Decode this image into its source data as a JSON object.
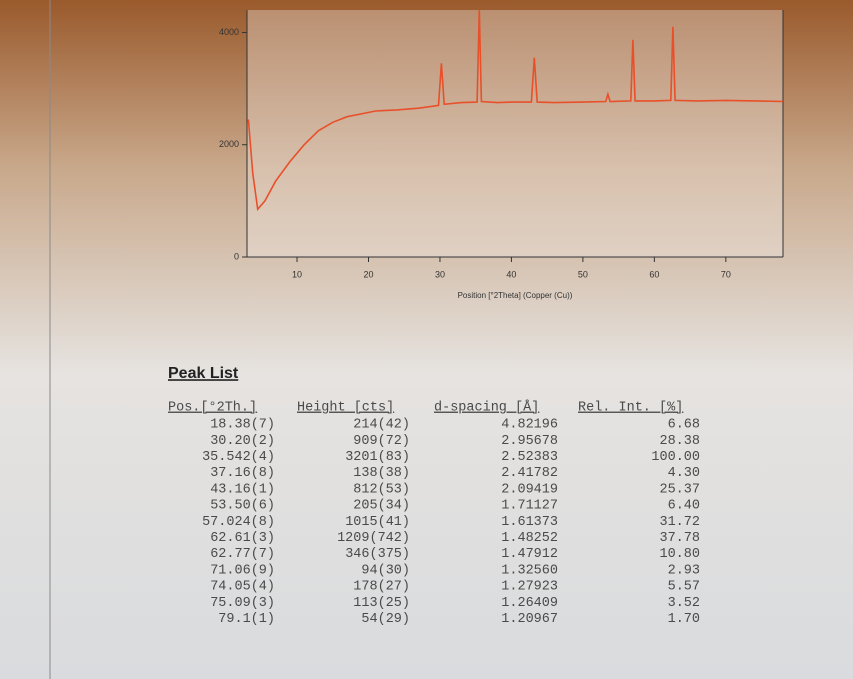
{
  "chart_data": {
    "type": "line",
    "xlabel": "Position [°2Theta] (Copper (Cu))",
    "x": [
      3.2,
      3.8,
      4.5,
      5.5,
      7,
      9,
      11,
      13,
      15,
      17,
      19,
      21,
      24,
      27,
      29.8,
      30.2,
      30.6,
      33,
      35.2,
      35.5,
      35.8,
      38,
      40,
      42.8,
      43.2,
      43.6,
      46,
      50,
      53.2,
      53.5,
      53.8,
      56.7,
      57.0,
      57.3,
      60,
      62.3,
      62.6,
      62.9,
      66,
      70,
      74,
      78
    ],
    "y": [
      2450,
      1500,
      850,
      1000,
      1350,
      1700,
      2000,
      2250,
      2400,
      2500,
      2550,
      2600,
      2620,
      2650,
      2700,
      3450,
      2720,
      2750,
      2760,
      4400,
      2770,
      2750,
      2760,
      2760,
      3550,
      2760,
      2750,
      2760,
      2770,
      2900,
      2770,
      2780,
      3870,
      2780,
      2780,
      2790,
      4100,
      2790,
      2780,
      2790,
      2780,
      2770
    ],
    "color": "#e8502a",
    "xlim": [
      3,
      78
    ],
    "ylim": [
      0,
      4400
    ],
    "xticks": [
      10,
      20,
      30,
      40,
      50,
      60,
      70
    ],
    "yticks": [
      0,
      2000,
      4000
    ]
  },
  "peak_list": {
    "title": "Peak List",
    "columns": [
      "Pos.[°2Th.]",
      "Height [cts]",
      "d-spacing [Å]",
      "Rel. Int. [%]"
    ],
    "rows": [
      [
        "18.38(7)",
        "214(42)",
        "4.82196",
        "6.68"
      ],
      [
        "30.20(2)",
        "909(72)",
        "2.95678",
        "28.38"
      ],
      [
        "35.542(4)",
        "3201(83)",
        "2.52383",
        "100.00"
      ],
      [
        "37.16(8)",
        "138(38)",
        "2.41782",
        "4.30"
      ],
      [
        "43.16(1)",
        "812(53)",
        "2.09419",
        "25.37"
      ],
      [
        "53.50(6)",
        "205(34)",
        "1.71127",
        "6.40"
      ],
      [
        "57.024(8)",
        "1015(41)",
        "1.61373",
        "31.72"
      ],
      [
        "62.61(3)",
        "1209(742)",
        "1.48252",
        "37.78"
      ],
      [
        "62.77(7)",
        "346(375)",
        "1.47912",
        "10.80"
      ],
      [
        "71.06(9)",
        "94(30)",
        "1.32560",
        "2.93"
      ],
      [
        "74.05(4)",
        "178(27)",
        "1.27923",
        "5.57"
      ],
      [
        "75.09(3)",
        "113(25)",
        "1.26409",
        "3.52"
      ],
      [
        "79.1(1)",
        "54(29)",
        "1.20967",
        "1.70"
      ]
    ]
  }
}
